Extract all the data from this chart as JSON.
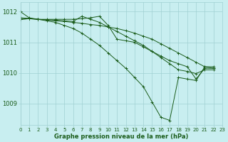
{
  "background_color": "#c8eef0",
  "grid_color": "#a0d0d2",
  "line_color": "#1a5c1a",
  "xlabel": "Graphe pression niveau de la mer (hPa)",
  "xlim": [
    0,
    23
  ],
  "ylim": [
    1008.3,
    1012.3
  ],
  "yticks": [
    1009,
    1010,
    1011,
    1012
  ],
  "xticks": [
    0,
    1,
    2,
    3,
    4,
    5,
    6,
    7,
    8,
    9,
    10,
    11,
    12,
    13,
    14,
    15,
    16,
    17,
    18,
    19,
    20,
    21,
    22,
    23
  ],
  "lines": [
    {
      "points": [
        [
          0,
          1012.0
        ],
        [
          1,
          1011.8
        ],
        [
          2,
          1011.75
        ],
        [
          3,
          1011.7
        ],
        [
          4,
          1011.65
        ],
        [
          5,
          1011.55
        ],
        [
          6,
          1011.45
        ],
        [
          7,
          1011.3
        ],
        [
          8,
          1011.1
        ],
        [
          9,
          1010.9
        ],
        [
          10,
          1010.65
        ],
        [
          11,
          1010.4
        ],
        [
          12,
          1010.15
        ],
        [
          13,
          1009.85
        ],
        [
          14,
          1009.55
        ],
        [
          15,
          1009.05
        ],
        [
          16,
          1008.55
        ],
        [
          17,
          1008.45
        ],
        [
          18,
          1009.85
        ],
        [
          19,
          1009.8
        ],
        [
          20,
          1009.75
        ],
        [
          21,
          1010.2
        ],
        [
          22,
          1010.2
        ]
      ]
    },
    {
      "points": [
        [
          0,
          1011.8
        ],
        [
          1,
          1011.78
        ],
        [
          2,
          1011.75
        ],
        [
          3,
          1011.73
        ],
        [
          4,
          1011.7
        ],
        [
          5,
          1011.68
        ],
        [
          6,
          1011.65
        ],
        [
          7,
          1011.62
        ],
        [
          8,
          1011.58
        ],
        [
          9,
          1011.55
        ],
        [
          10,
          1011.5
        ],
        [
          11,
          1011.45
        ],
        [
          12,
          1011.38
        ],
        [
          13,
          1011.3
        ],
        [
          14,
          1011.2
        ],
        [
          15,
          1011.1
        ],
        [
          16,
          1010.95
        ],
        [
          17,
          1010.8
        ],
        [
          18,
          1010.65
        ],
        [
          19,
          1010.5
        ],
        [
          20,
          1010.35
        ],
        [
          21,
          1010.2
        ],
        [
          22,
          1010.15
        ]
      ]
    },
    {
      "points": [
        [
          0,
          1011.75
        ],
        [
          1,
          1011.77
        ],
        [
          2,
          1011.75
        ],
        [
          3,
          1011.75
        ],
        [
          4,
          1011.75
        ],
        [
          5,
          1011.75
        ],
        [
          6,
          1011.75
        ],
        [
          7,
          1011.77
        ],
        [
          8,
          1011.8
        ],
        [
          9,
          1011.85
        ],
        [
          10,
          1011.55
        ],
        [
          11,
          1011.1
        ],
        [
          12,
          1011.05
        ],
        [
          13,
          1011.0
        ],
        [
          14,
          1010.85
        ],
        [
          15,
          1010.7
        ],
        [
          16,
          1010.55
        ],
        [
          17,
          1010.4
        ],
        [
          18,
          1010.3
        ],
        [
          19,
          1010.2
        ],
        [
          20,
          1009.8
        ],
        [
          21,
          1010.15
        ],
        [
          22,
          1010.15
        ]
      ]
    },
    {
      "points": [
        [
          0,
          1011.75
        ],
        [
          1,
          1011.77
        ],
        [
          2,
          1011.75
        ],
        [
          3,
          1011.73
        ],
        [
          4,
          1011.72
        ],
        [
          5,
          1011.7
        ],
        [
          6,
          1011.68
        ],
        [
          7,
          1011.85
        ],
        [
          8,
          1011.75
        ],
        [
          9,
          1011.65
        ],
        [
          10,
          1011.5
        ],
        [
          11,
          1011.35
        ],
        [
          12,
          1011.2
        ],
        [
          13,
          1011.05
        ],
        [
          14,
          1010.9
        ],
        [
          15,
          1010.7
        ],
        [
          16,
          1010.5
        ],
        [
          17,
          1010.3
        ],
        [
          18,
          1010.1
        ],
        [
          19,
          1010.05
        ],
        [
          20,
          1009.98
        ],
        [
          21,
          1010.1
        ],
        [
          22,
          1010.1
        ]
      ]
    }
  ]
}
